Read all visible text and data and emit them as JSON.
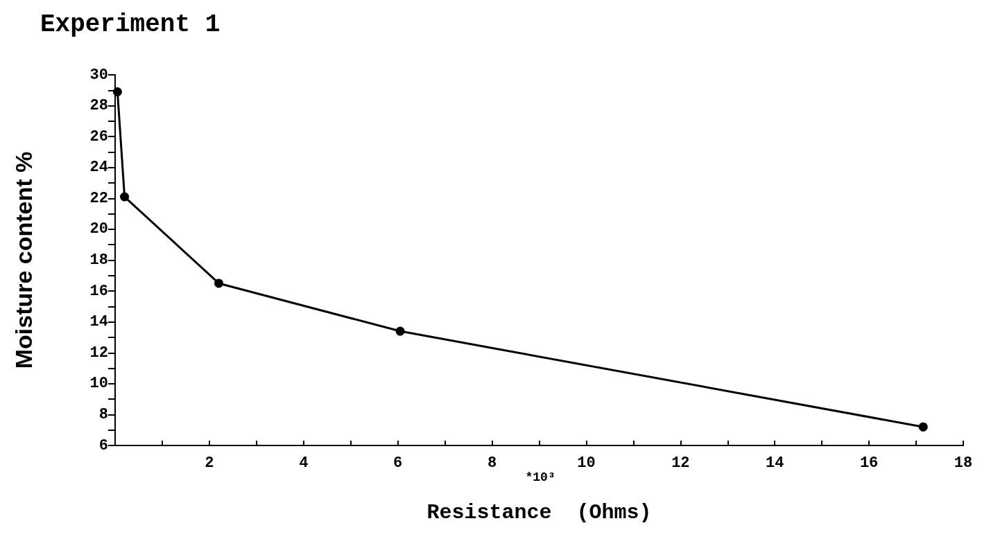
{
  "chart_data": {
    "type": "line",
    "title": "Experiment 1",
    "xlabel": "Resistance  (Ohms)",
    "ylabel": "Moisture content %",
    "annotations": [
      "*10³"
    ],
    "x": [
      0.05,
      0.2,
      2.2,
      6.05,
      17.15
    ],
    "series": [
      {
        "color": "#000000",
        "values": [
          28.9,
          22.1,
          16.5,
          13.4,
          7.2
        ]
      }
    ],
    "xlim": [
      0,
      18
    ],
    "xticks": [
      {
        "value": 0,
        "label": null
      },
      {
        "value": 1,
        "label": null
      },
      2,
      {
        "value": 3,
        "label": null
      },
      4,
      {
        "value": 5,
        "label": null
      },
      6,
      {
        "value": 7,
        "label": null
      },
      8,
      {
        "value": 9,
        "label": null
      },
      10,
      {
        "value": 11,
        "label": null
      },
      12,
      {
        "value": 13,
        "label": null
      },
      14,
      {
        "value": 15,
        "label": null
      },
      16,
      {
        "value": 17,
        "label": null
      },
      18
    ],
    "ylim": [
      6,
      30
    ],
    "yticks": [
      6,
      {
        "value": 7,
        "label": null
      },
      8,
      {
        "value": 9,
        "label": null
      },
      10,
      {
        "value": 11,
        "label": null
      },
      12,
      {
        "value": 13,
        "label": null
      },
      14,
      {
        "value": 15,
        "label": null
      },
      16,
      {
        "value": 17,
        "label": null
      },
      18,
      {
        "value": 19,
        "label": null
      },
      20,
      {
        "value": 21,
        "label": null
      },
      22,
      {
        "value": 23,
        "label": null
      },
      24,
      {
        "value": 25,
        "label": null
      },
      26,
      {
        "value": 27,
        "label": null
      },
      28,
      {
        "value": 29,
        "label": null
      },
      30
    ],
    "grid": false,
    "marker": "circle",
    "line_style": "solid"
  }
}
